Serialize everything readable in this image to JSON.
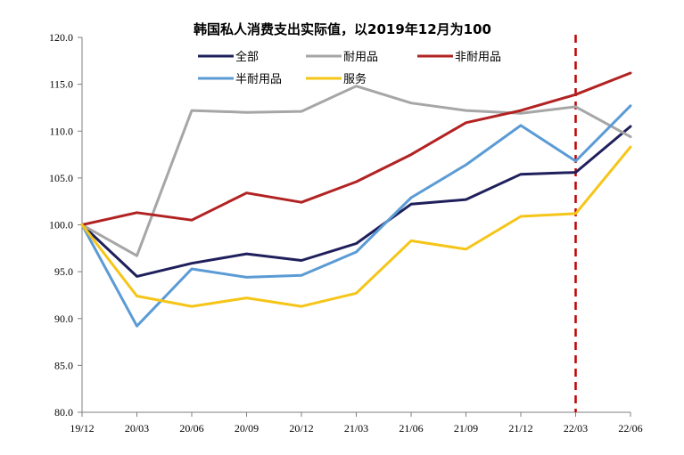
{
  "chart_data": {
    "type": "line",
    "title": "韩国私人消费支出实际值，以2019年12月为100",
    "xlabel": "",
    "ylabel": "",
    "categories": [
      "19/12",
      "20/03",
      "20/06",
      "20/09",
      "20/12",
      "21/03",
      "21/06",
      "21/09",
      "21/12",
      "22/03",
      "22/06"
    ],
    "ylim": [
      80,
      120
    ],
    "yticks": [
      "80.0",
      "85.0",
      "90.0",
      "95.0",
      "100.0",
      "105.0",
      "110.0",
      "115.0",
      "120.0"
    ],
    "ytick_values": [
      80,
      85,
      90,
      95,
      100,
      105,
      110,
      115,
      120
    ],
    "grid": false,
    "legend_position": "top-center",
    "vline": {
      "category": "22/03",
      "color": "#C00000",
      "style": "dashed"
    },
    "series": [
      {
        "name": "全部",
        "color": "#1F1F5C",
        "values": [
          100.0,
          94.5,
          95.9,
          96.9,
          96.2,
          98.0,
          102.2,
          102.7,
          105.4,
          105.6,
          110.5
        ]
      },
      {
        "name": "耐用品",
        "color": "#A6A6A6",
        "values": [
          100.0,
          96.7,
          112.2,
          112.0,
          112.1,
          114.8,
          113.0,
          112.2,
          111.9,
          112.6,
          109.4
        ]
      },
      {
        "name": "非耐用品",
        "color": "#B22222",
        "values": [
          100.0,
          101.3,
          100.5,
          103.4,
          102.4,
          104.6,
          107.5,
          110.9,
          112.2,
          113.9,
          116.2
        ]
      },
      {
        "name": "半耐用品",
        "color": "#5B9BD5",
        "values": [
          100.0,
          89.2,
          95.3,
          94.4,
          94.6,
          97.1,
          102.9,
          106.4,
          110.6,
          106.8,
          112.7
        ]
      },
      {
        "name": "服务",
        "color": "#F5C518",
        "values": [
          100.0,
          92.4,
          91.3,
          92.2,
          91.3,
          92.7,
          98.3,
          97.4,
          100.9,
          101.2,
          108.3
        ]
      }
    ]
  }
}
